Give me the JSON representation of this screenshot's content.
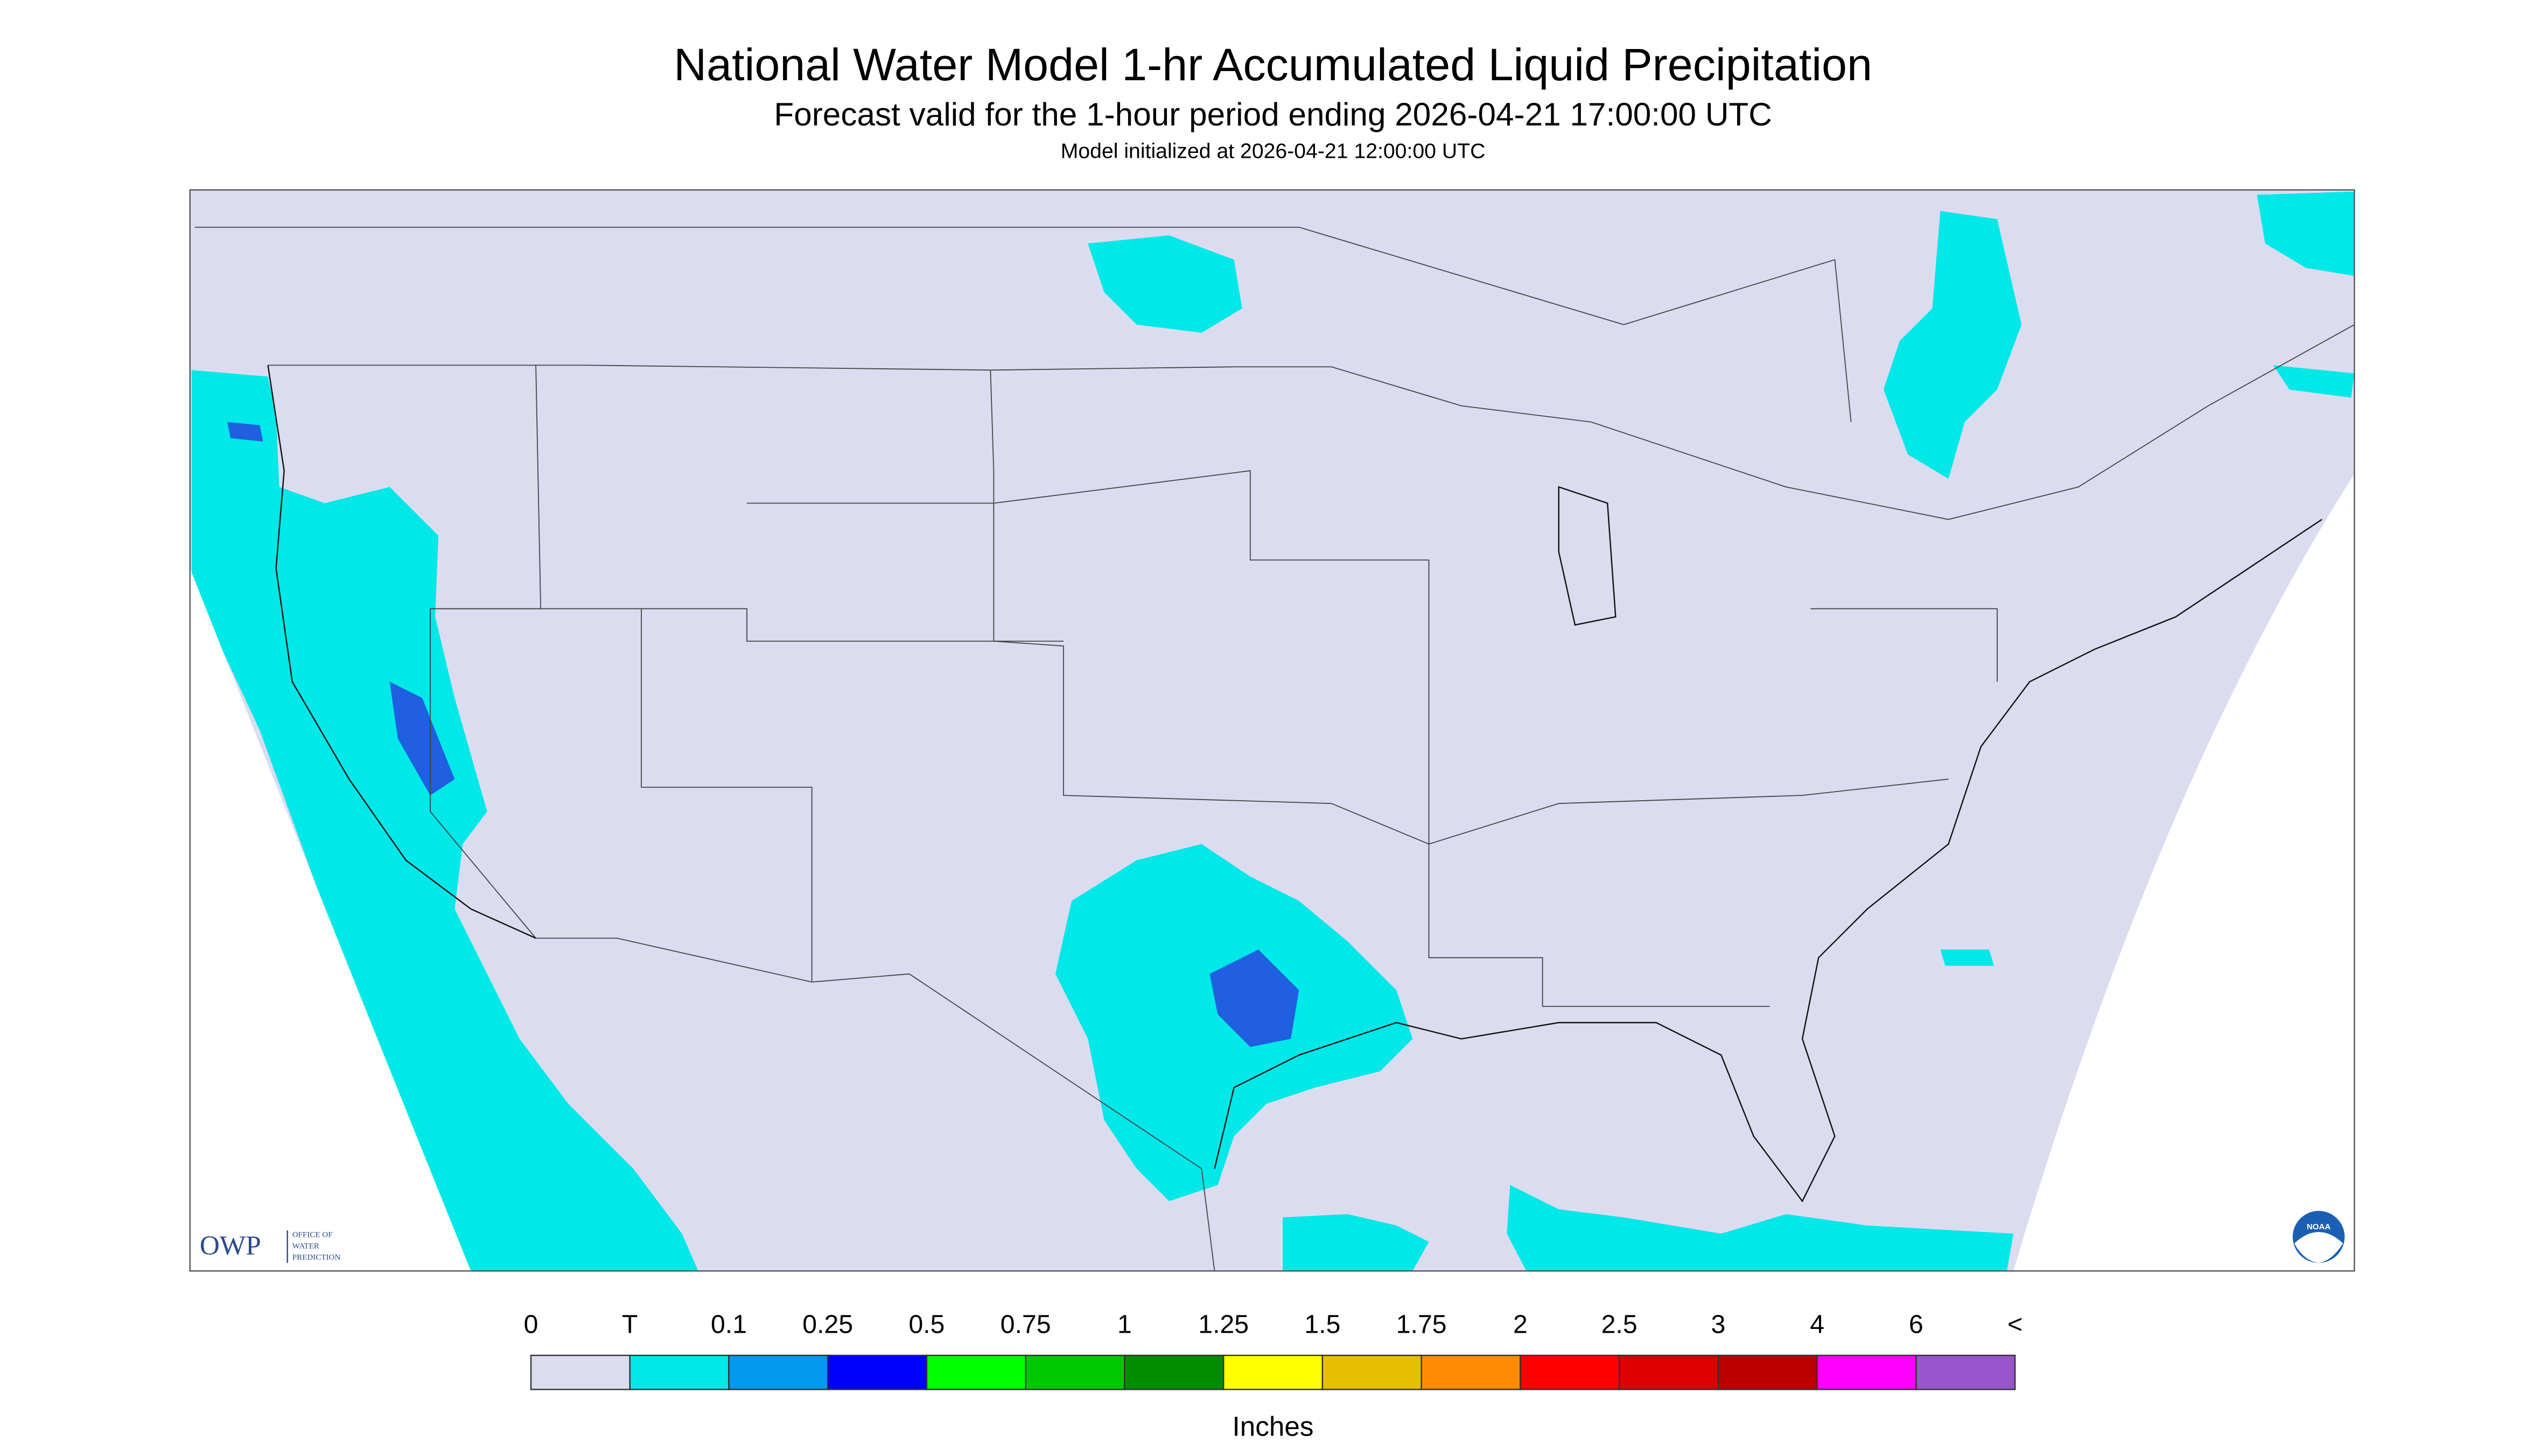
{
  "header": {
    "title": "National Water Model 1-hr Accumulated Liquid Precipitation",
    "subtitle": "Forecast valid for the 1-hour period ending 2026-04-21 17:00:00 UTC",
    "note": "Model initialized at 2026-04-21 12:00:00 UTC"
  },
  "logos": {
    "owp": "OWP",
    "owp_name": [
      "OFFICE OF",
      "WATER",
      "PREDICTION"
    ],
    "noaa": "NOAA"
  },
  "legend": {
    "labels": [
      "0",
      "T",
      "0.1",
      "0.25",
      "0.5",
      "0.75",
      "1",
      "1.25",
      "1.5",
      "1.75",
      "2",
      "2.5",
      "3",
      "4",
      "6",
      "<"
    ],
    "colors": [
      "#dcdcf0",
      "#00e8e8",
      "#0099ee",
      "#0000ff",
      "#00ff00",
      "#00c800",
      "#008c00",
      "#ffff00",
      "#e6c000",
      "#ff8c00",
      "#ff0000",
      "#dd0000",
      "#bb0000",
      "#ff00ff",
      "#9955cc"
    ],
    "unit": "Inches"
  }
}
